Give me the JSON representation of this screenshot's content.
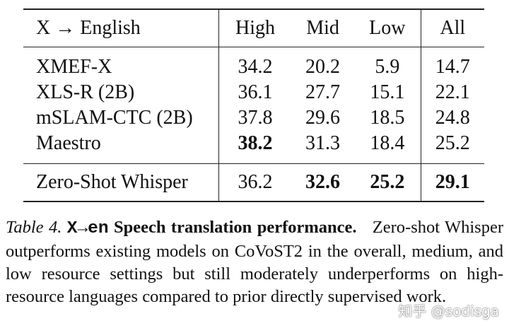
{
  "table": {
    "header": [
      "X → English",
      "High",
      "Mid",
      "Low",
      "All"
    ],
    "rows": [
      [
        "XMEF-X",
        34.2,
        20.2,
        5.9,
        14.7
      ],
      [
        "XLS-R (2B)",
        36.1,
        27.7,
        15.1,
        22.1
      ],
      [
        "mSLAM-CTC (2B)",
        37.8,
        29.6,
        18.5,
        24.8
      ],
      [
        "Maestro",
        38.2,
        31.3,
        18.4,
        25.2
      ],
      [
        "Zero-Shot Whisper",
        36.2,
        32.6,
        25.2,
        29.1
      ]
    ]
  },
  "caption": {
    "label": "Table 4.",
    "code": "X→en",
    "heading": "Speech translation performance.",
    "text": "Zero-shot Whisper outperforms existing models on CoVoST2 in the overall, medium, and low resource settings but still moderately underperforms on high-resource languages compared to prior directly supervised work."
  },
  "watermark": "知乎 @sodisga"
}
